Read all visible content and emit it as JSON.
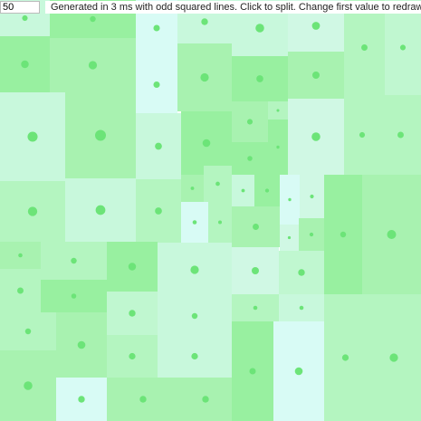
{
  "controls": {
    "first_value": "50",
    "status": "Generated in 3 ms with odd squared lines. Click to split. Change first value to redraw."
  }
}
